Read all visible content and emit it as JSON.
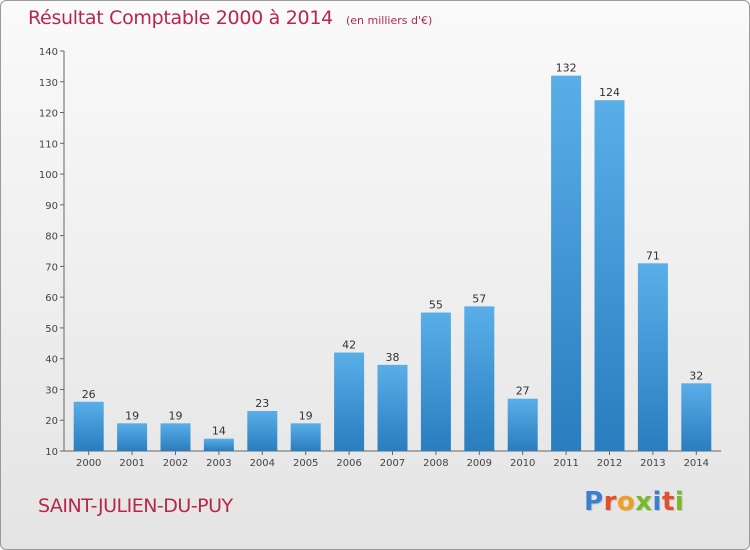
{
  "header": {
    "title": "Résultat Comptable 2000 à 2014",
    "units": "(en milliers d'€)"
  },
  "footer": {
    "commune": "SAINT-JULIEN-DU-PUY",
    "logo_text": "Proxiti"
  },
  "colors": {
    "title": "#b8264a",
    "bar_light": "#5aaee8",
    "bar_dark": "#2a7dbe",
    "logo_letters": [
      "#3a7fd0",
      "#e0502a",
      "#f0a020",
      "#7ab82a",
      "#3a7fd0",
      "#e0502a",
      "#7ab82a"
    ]
  },
  "chart_data": {
    "type": "bar",
    "title": "Résultat Comptable 2000 à 2014",
    "subtitle": "(en milliers d'€)",
    "xlabel": "",
    "ylabel": "",
    "categories": [
      "2000",
      "2001",
      "2002",
      "2003",
      "2004",
      "2005",
      "2006",
      "2007",
      "2008",
      "2009",
      "2010",
      "2011",
      "2012",
      "2013",
      "2014"
    ],
    "values": [
      26,
      19,
      19,
      14,
      23,
      19,
      42,
      38,
      55,
      57,
      27,
      132,
      124,
      71,
      32
    ],
    "ylim": [
      10,
      140
    ],
    "yticks": [
      10,
      20,
      30,
      40,
      50,
      60,
      70,
      80,
      90,
      100,
      110,
      120,
      130,
      140
    ],
    "grid": false,
    "legend": "none"
  }
}
